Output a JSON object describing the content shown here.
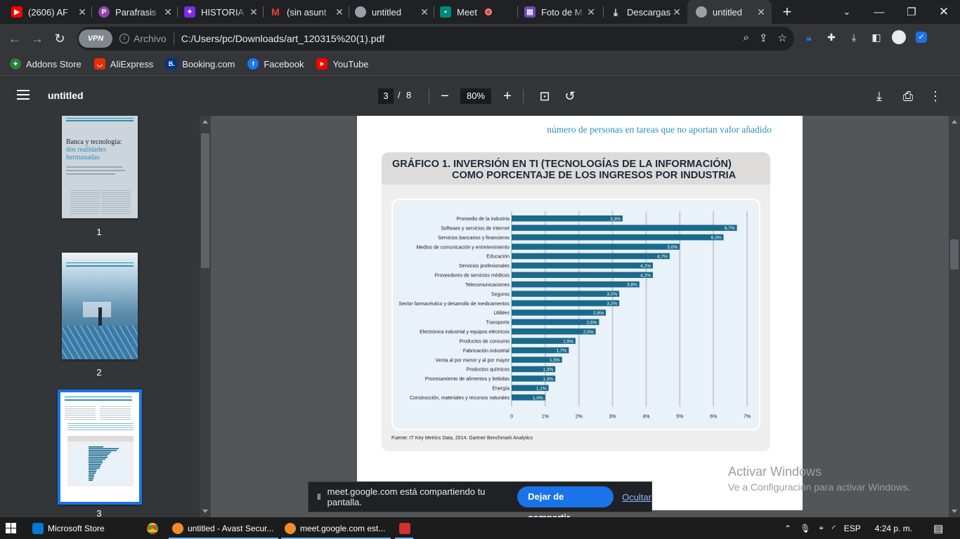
{
  "browser": {
    "tabs": [
      {
        "title": "(2606) AF",
        "icon": "youtube-icon",
        "color": "#ff0000"
      },
      {
        "title": "Parafrasis",
        "icon": "paraphraser-icon",
        "color": "#8e44ad"
      },
      {
        "title": "HISTORIA",
        "icon": "canva-icon",
        "color": "#7d2ae8"
      },
      {
        "title": "(sin asunt",
        "icon": "gmail-icon",
        "color": "#ea4335"
      },
      {
        "title": "untitled",
        "icon": "globe-icon",
        "color": "#9aa0a6"
      },
      {
        "title": "Meet",
        "icon": "meet-icon",
        "color": "#00897b"
      },
      {
        "title": "Foto de M",
        "icon": "forms-icon",
        "color": "#7248b9"
      },
      {
        "title": "Descargas",
        "icon": "download-icon",
        "color": "#e8eaed"
      },
      {
        "title": "untitled",
        "icon": "globe-icon",
        "color": "#9aa0a6"
      }
    ],
    "active_tab_index": 8,
    "new_tab_label": "+",
    "vpn_label": "VPN",
    "scheme_label": "Archivo",
    "url": "C:/Users/pc/Downloads/art_120315%20(1).pdf",
    "bookmarks": [
      {
        "label": "Addons Store",
        "icon": "addons-store-icon",
        "color": "#2e7d32"
      },
      {
        "label": "AliExpress",
        "icon": "aliexpress-icon",
        "color": "#e62e04"
      },
      {
        "label": "Booking.com",
        "icon": "booking-icon",
        "color": "#003580"
      },
      {
        "label": "Facebook",
        "icon": "facebook-icon",
        "color": "#1877f2"
      },
      {
        "label": "YouTube",
        "icon": "youtube-icon",
        "color": "#ff0000"
      }
    ]
  },
  "pdf": {
    "title": "untitled",
    "current_page": "3",
    "page_separator": "/",
    "total_pages": "8",
    "zoom": "80%",
    "thumbnails": [
      {
        "number": "1",
        "heading": "Banca y tecnología:",
        "subheading": "dos realidades hermanadas",
        "selected": false
      },
      {
        "number": "2",
        "selected": false
      },
      {
        "number": "3",
        "selected": true
      }
    ],
    "pullquote": "número de personas en tareas que no aportan valor añadido",
    "chart_title_line1": "GRÁFICO 1. INVERSIÓN EN TI (TECNOLOGÍAS DE LA INFORMACIÓN)",
    "chart_title_line2": "COMO PORCENTAJE DE LOS INGRESOS POR INDUSTRIA",
    "source": "Fuente: IT Key Metrics Data, 2014. Gartner Benchmark Analytics"
  },
  "chart_data": {
    "type": "bar",
    "orientation": "horizontal",
    "title": "GRÁFICO 1. INVERSIÓN EN TI (TECNOLOGÍAS DE LA INFORMACIÓN) COMO PORCENTAJE DE LOS INGRESOS POR INDUSTRIA",
    "categories": [
      "Promedio de la industria",
      "Software y servicios de Internet",
      "Servicios bancarios y financieros",
      "Medios de comunicación y entretenimiento",
      "Educación",
      "Servicios profesionales",
      "Proveedores de servicios médicos",
      "Telecomunicaciones",
      "Seguros",
      "Sector farmacéutico y desarrollo de medicamentos",
      "Utilities",
      "Transporte",
      "Electrónica industrial y equipos eléctricos",
      "Productos de consumo",
      "Fabricación industrial",
      "Venta al por menor y al por mayor",
      "Productos químicos",
      "Procesamiento de alimentos y bebidas",
      "Energía",
      "Construcción, materiales y recursos naturales"
    ],
    "values": [
      3.3,
      6.7,
      6.3,
      5.0,
      4.7,
      4.2,
      4.2,
      3.8,
      3.2,
      3.2,
      2.8,
      2.6,
      2.5,
      1.9,
      1.7,
      1.5,
      1.3,
      1.3,
      1.1,
      1.0
    ],
    "value_labels": [
      "3,3%",
      "6,7%",
      "6,3%",
      "5,0%",
      "4,7%",
      "4,2%",
      "4,2%",
      "3,8%",
      "3,2%",
      "3,2%",
      "2,8%",
      "2,6%",
      "2,5%",
      "1,9%",
      "1,7%",
      "1,5%",
      "1,3%",
      "1,3%",
      "1,1%",
      "1,0%"
    ],
    "xticks": [
      "0",
      "1%",
      "2%",
      "3%",
      "4%",
      "5%",
      "6%",
      "7%"
    ],
    "xlim": [
      0,
      7
    ],
    "grid": true,
    "bar_color": "#1b6a8c",
    "source": "Fuente: IT Key Metrics Data, 2014. Gartner Benchmark Analytics"
  },
  "share_banner": {
    "pause_symbol": "II",
    "message": "meet.google.com está compartiendo tu pantalla.",
    "stop_label": "Dejar de compartir",
    "hide_label": "Ocultar"
  },
  "watermark": {
    "line1": "Activar Windows",
    "line2": "Ve a Configuración para activar Windows."
  },
  "taskbar": {
    "items": [
      {
        "label": "Microsoft Store",
        "icon": "store-icon",
        "color": "#0078d4"
      },
      {
        "label": "",
        "icon": "chrome-icon",
        "color": "#fbbc04"
      },
      {
        "label": "untitled - Avast Secur...",
        "icon": "avast-browser-icon",
        "color": "#f28c28"
      },
      {
        "label": "meet.google.com est...",
        "icon": "avast-browser-icon",
        "color": "#f28c28"
      },
      {
        "label": "",
        "icon": "pdf-app-icon",
        "color": "#d32f2f"
      }
    ],
    "language": "ESP",
    "time": "4:24 p. m."
  }
}
